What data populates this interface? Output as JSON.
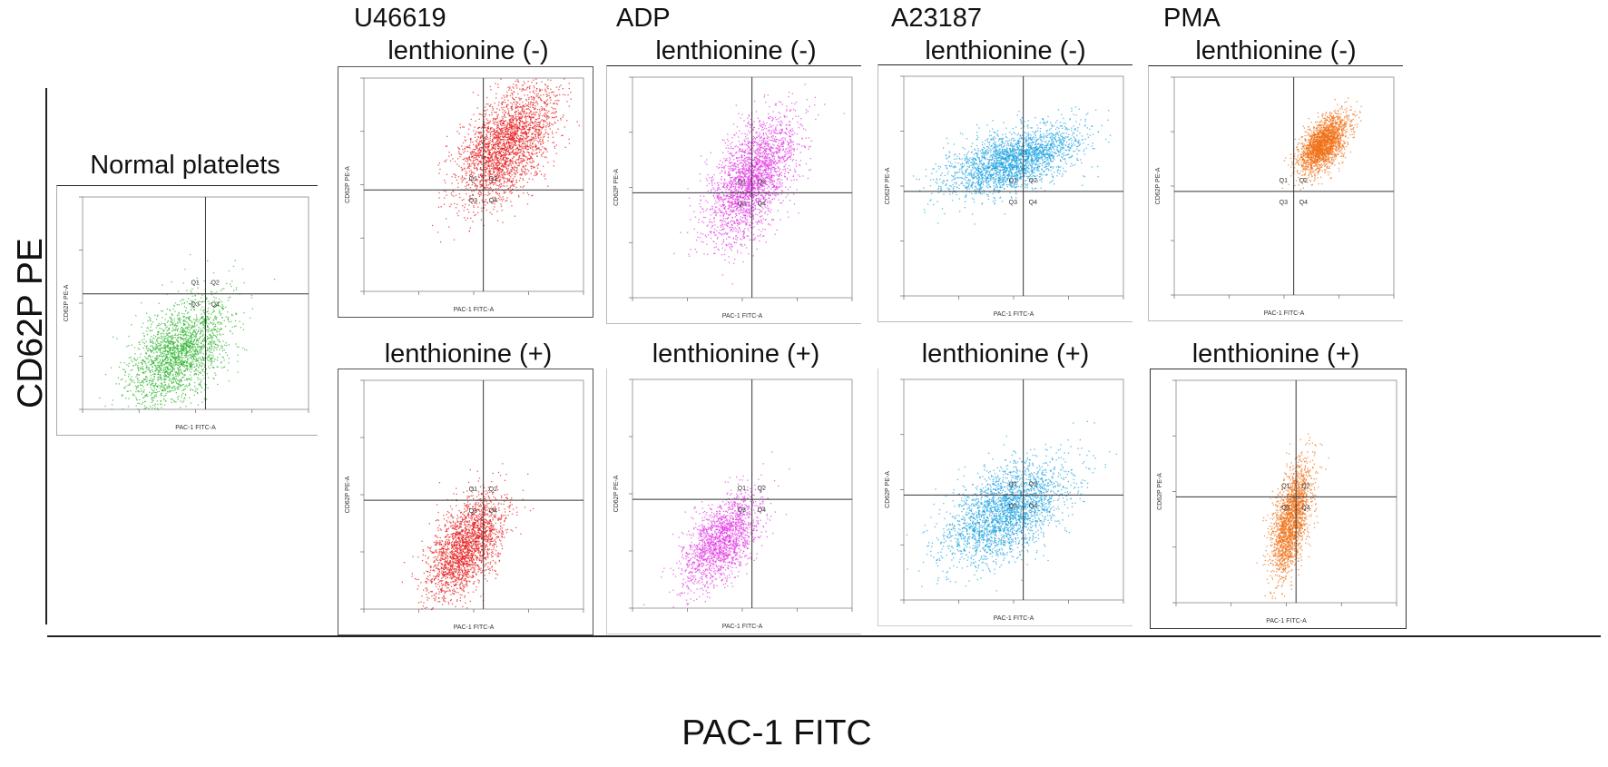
{
  "figure": {
    "y_axis_title": "CD62P PE",
    "x_axis_title": "PAC-1 FITC"
  },
  "columns": [
    {
      "agonist": "U46619",
      "top_label": "lenthionine (-)",
      "bottom_label": "lenthionine (+)"
    },
    {
      "agonist": "ADP",
      "top_label": "lenthionine (-)",
      "bottom_label": "lenthionine (+)"
    },
    {
      "agonist": "A23187",
      "top_label": "lenthionine (-)",
      "bottom_label": "lenthionine (+)"
    },
    {
      "agonist": "PMA",
      "top_label": "lenthionine (-)",
      "bottom_label": "lenthionine (+)"
    }
  ],
  "normal": {
    "label": "Normal platelets"
  },
  "plot_text": {
    "xlabel": "PAC-1 FITC-A",
    "ylabel": "CD62P PE-A",
    "quadrants": [
      "Q1",
      "Q2",
      "Q3",
      "Q4"
    ]
  },
  "colors": {
    "normal": "#2fb52f",
    "U46619": "#e51d1d",
    "ADP": "#e33ce3",
    "A23187": "#1fa3e0",
    "PMA": "#f07118",
    "gate": "#333333"
  },
  "chart_data": [
    {
      "type": "scatter",
      "title": "Normal platelets",
      "xlabel": "PAC-1 FITC-A",
      "ylabel": "CD62P PE-A",
      "scale": "log",
      "xlim": [
        10,
        100000
      ],
      "ylim": [
        10,
        100000
      ],
      "x_gate": 1500,
      "y_gate": 1500,
      "color": "#2fb52f",
      "cluster_center": [
        500,
        120
      ],
      "cluster_spread_decades": [
        0.45,
        0.5
      ],
      "n_points": 2200,
      "grid": false
    },
    {
      "type": "scatter",
      "title": "lenthionine (-)",
      "agonist": "U46619",
      "xlabel": "PAC-1 FITC-A",
      "ylabel": "CD62P PE-A",
      "scale": "log",
      "xlim": [
        10,
        100000
      ],
      "ylim": [
        10,
        100000
      ],
      "x_gate": 1500,
      "y_gate": 800,
      "color": "#e51d1d",
      "cluster_center": [
        4000,
        6000
      ],
      "cluster_spread_decades": [
        0.45,
        0.55
      ],
      "n_points": 2600,
      "grid": false
    },
    {
      "type": "scatter",
      "title": "lenthionine (+)",
      "agonist": "U46619",
      "xlabel": "PAC-1 FITC-A",
      "ylabel": "CD62P PE-A",
      "scale": "log",
      "xlim": [
        10,
        100000
      ],
      "ylim": [
        10,
        100000
      ],
      "x_gate": 1500,
      "y_gate": 800,
      "color": "#e51d1d",
      "cluster_center": [
        700,
        120
      ],
      "cluster_spread_decades": [
        0.35,
        0.45
      ],
      "n_points": 2200,
      "grid": false
    },
    {
      "type": "scatter",
      "title": "lenthionine (-)",
      "agonist": "ADP",
      "xlabel": "PAC-1 FITC-A",
      "ylabel": "CD62P PE-A",
      "scale": "log",
      "xlim": [
        10,
        100000
      ],
      "ylim": [
        10,
        100000
      ],
      "x_gate": 1500,
      "y_gate": 800,
      "color": "#e33ce3",
      "cluster_center": [
        1500,
        1500
      ],
      "cluster_spread_decades": [
        0.4,
        0.55
      ],
      "n_points": 2600,
      "grid": false
    },
    {
      "type": "scatter",
      "title": "lenthionine (+)",
      "agonist": "ADP",
      "xlabel": "PAC-1 FITC-A",
      "ylabel": "CD62P PE-A",
      "scale": "log",
      "xlim": [
        10,
        100000
      ],
      "ylim": [
        10,
        100000
      ],
      "x_gate": 1500,
      "y_gate": 800,
      "color": "#e33ce3",
      "cluster_center": [
        400,
        150
      ],
      "cluster_spread_decades": [
        0.35,
        0.4
      ],
      "n_points": 1800,
      "grid": false
    },
    {
      "type": "scatter",
      "title": "lenthionine (-)",
      "agonist": "A23187",
      "xlabel": "PAC-1 FITC-A",
      "ylabel": "CD62P PE-A",
      "scale": "log",
      "xlim": [
        10,
        100000
      ],
      "ylim": [
        10,
        100000
      ],
      "x_gate": 1500,
      "y_gate": 800,
      "color": "#1fa3e0",
      "cluster_center": [
        1000,
        3000
      ],
      "cluster_spread_decades": [
        0.6,
        0.3
      ],
      "n_points": 2600,
      "grid": false
    },
    {
      "type": "scatter",
      "title": "lenthionine (+)",
      "agonist": "A23187",
      "xlabel": "PAC-1 FITC-A",
      "ylabel": "CD62P PE-A",
      "scale": "log",
      "xlim": [
        10,
        100000
      ],
      "ylim": [
        10,
        100000
      ],
      "x_gate": 1500,
      "y_gate": 800,
      "color": "#1fa3e0",
      "cluster_center": [
        700,
        400
      ],
      "cluster_spread_decades": [
        0.55,
        0.45
      ],
      "n_points": 2600,
      "grid": false
    },
    {
      "type": "scatter",
      "title": "lenthionine (-)",
      "agonist": "PMA",
      "xlabel": "PAC-1 FITC-A",
      "ylabel": "CD62P PE-A",
      "scale": "log",
      "xlim": [
        10,
        100000
      ],
      "ylim": [
        10,
        100000
      ],
      "x_gate": 1500,
      "y_gate": 800,
      "color": "#f07118",
      "cluster_center": [
        5000,
        6000
      ],
      "cluster_spread_decades": [
        0.22,
        0.25
      ],
      "n_points": 2200,
      "grid": false
    },
    {
      "type": "scatter",
      "title": "lenthionine (+)",
      "agonist": "PMA",
      "xlabel": "PAC-1 FITC-A",
      "ylabel": "CD62P PE-A",
      "scale": "log",
      "xlim": [
        10,
        100000
      ],
      "ylim": [
        10,
        100000
      ],
      "x_gate": 1500,
      "y_gate": 800,
      "color": "#f07118",
      "cluster_center": [
        1200,
        300
      ],
      "cluster_spread_decades": [
        0.18,
        0.5
      ],
      "n_points": 2000,
      "grid": false
    }
  ]
}
